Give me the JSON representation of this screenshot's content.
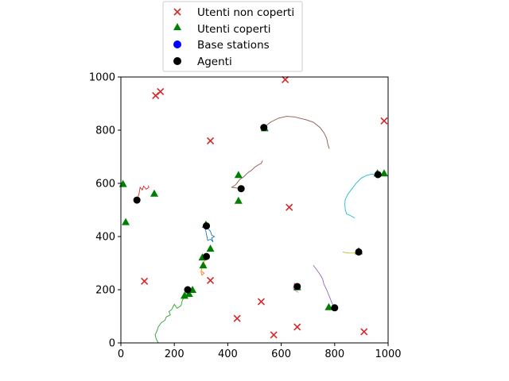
{
  "chart_data": {
    "type": "scatter",
    "title": "",
    "xlabel": "",
    "ylabel": "",
    "xlim": [
      0,
      1000
    ],
    "ylim": [
      0,
      1000
    ],
    "xticks": [
      0,
      200,
      400,
      600,
      800,
      1000
    ],
    "yticks": [
      0,
      200,
      400,
      600,
      800,
      1000
    ],
    "grid": false,
    "legend_position": "above plot",
    "legend": [
      {
        "label": "Utenti non coperti",
        "marker": "x",
        "color": "#d62728"
      },
      {
        "label": "Utenti coperti",
        "marker": "triangle",
        "color": "#008000"
      },
      {
        "label": "Base stations",
        "marker": "circle",
        "color": "#0000ff"
      },
      {
        "label": "Agenti",
        "marker": "circle",
        "color": "#000000"
      }
    ],
    "series": [
      {
        "name": "Utenti non coperti",
        "marker": "x",
        "color": "#d62728",
        "points": [
          [
            130,
            930
          ],
          [
            148,
            945
          ],
          [
            335,
            760
          ],
          [
            615,
            990
          ],
          [
            985,
            835
          ],
          [
            630,
            510
          ],
          [
            88,
            232
          ],
          [
            335,
            235
          ],
          [
            525,
            155
          ],
          [
            435,
            92
          ],
          [
            572,
            30
          ],
          [
            660,
            60
          ],
          [
            910,
            42
          ]
        ]
      },
      {
        "name": "Utenti coperti",
        "marker": "triangle",
        "color": "#008000",
        "points": [
          [
            8,
            598
          ],
          [
            18,
            455
          ],
          [
            125,
            562
          ],
          [
            440,
            632
          ],
          [
            440,
            535
          ],
          [
            538,
            808
          ],
          [
            318,
            445
          ],
          [
            335,
            355
          ],
          [
            305,
            322
          ],
          [
            308,
            292
          ],
          [
            268,
            200
          ],
          [
            238,
            178
          ],
          [
            255,
            185
          ],
          [
            660,
            210
          ],
          [
            778,
            135
          ],
          [
            890,
            345
          ],
          [
            960,
            638
          ],
          [
            985,
            638
          ]
        ]
      },
      {
        "name": "Agenti",
        "marker": "circle",
        "color": "#000000",
        "points": [
          [
            60,
            537
          ],
          [
            450,
            580
          ],
          [
            535,
            810
          ],
          [
            320,
            440
          ],
          [
            320,
            325
          ],
          [
            250,
            200
          ],
          [
            660,
            212
          ],
          [
            800,
            132
          ],
          [
            890,
            342
          ],
          [
            962,
            633
          ]
        ]
      }
    ],
    "trajectories": [
      {
        "color": "#d62728",
        "points": [
          [
            60,
            537
          ],
          [
            68,
            560
          ],
          [
            72,
            585
          ],
          [
            80,
            575
          ],
          [
            85,
            590
          ],
          [
            95,
            578
          ],
          [
            105,
            585
          ],
          [
            102,
            592
          ]
        ]
      },
      {
        "color": "#8c564b",
        "points": [
          [
            450,
            580
          ],
          [
            415,
            585
          ],
          [
            430,
            595
          ],
          [
            445,
            615
          ],
          [
            460,
            625
          ],
          [
            475,
            640
          ],
          [
            490,
            650
          ],
          [
            500,
            660
          ],
          [
            515,
            670
          ],
          [
            525,
            675
          ],
          [
            530,
            685
          ]
        ]
      },
      {
        "color": "#8c564b",
        "points": [
          [
            535,
            810
          ],
          [
            560,
            830
          ],
          [
            590,
            845
          ],
          [
            620,
            852
          ],
          [
            650,
            850
          ],
          [
            690,
            840
          ],
          [
            720,
            830
          ],
          [
            745,
            810
          ],
          [
            760,
            790
          ],
          [
            770,
            770
          ],
          [
            775,
            745
          ],
          [
            780,
            730
          ]
        ]
      },
      {
        "color": "#1f77b4",
        "points": [
          [
            320,
            440
          ],
          [
            325,
            430
          ],
          [
            335,
            420
          ],
          [
            340,
            405
          ],
          [
            350,
            400
          ],
          [
            340,
            395
          ],
          [
            345,
            380
          ],
          [
            335,
            390
          ],
          [
            325,
            385
          ],
          [
            318,
            420
          ],
          [
            315,
            450
          ]
        ]
      },
      {
        "color": "#ff7f0e",
        "points": [
          [
            320,
            325
          ],
          [
            310,
            300
          ],
          [
            318,
            290
          ],
          [
            305,
            285
          ],
          [
            300,
            270
          ],
          [
            312,
            262
          ],
          [
            303,
            255
          ],
          [
            300,
            268
          ]
        ]
      },
      {
        "color": "#2ca02c",
        "points": [
          [
            250,
            200
          ],
          [
            238,
            175
          ],
          [
            230,
            160
          ],
          [
            225,
            140
          ],
          [
            210,
            130
          ],
          [
            200,
            145
          ],
          [
            190,
            125
          ],
          [
            180,
            118
          ],
          [
            185,
            105
          ],
          [
            170,
            98
          ],
          [
            165,
            85
          ],
          [
            150,
            75
          ],
          [
            140,
            60
          ],
          [
            135,
            45
          ],
          [
            128,
            30
          ],
          [
            132,
            15
          ],
          [
            140,
            0
          ]
        ]
      },
      {
        "color": "#e377c2",
        "points": [
          [
            660,
            212
          ],
          [
            650,
            225
          ],
          [
            645,
            205
          ],
          [
            655,
            195
          ],
          [
            665,
            190
          ]
        ]
      },
      {
        "color": "#9467bd",
        "points": [
          [
            800,
            132
          ],
          [
            790,
            150
          ],
          [
            780,
            175
          ],
          [
            770,
            200
          ],
          [
            760,
            220
          ],
          [
            755,
            240
          ],
          [
            745,
            258
          ],
          [
            735,
            272
          ],
          [
            725,
            285
          ],
          [
            720,
            292
          ]
        ]
      },
      {
        "color": "#bcbd22",
        "points": [
          [
            890,
            342
          ],
          [
            870,
            338
          ],
          [
            850,
            338
          ],
          [
            830,
            342
          ]
        ]
      },
      {
        "color": "#17becf",
        "points": [
          [
            962,
            633
          ],
          [
            940,
            635
          ],
          [
            920,
            630
          ],
          [
            900,
            620
          ],
          [
            880,
            600
          ],
          [
            865,
            580
          ],
          [
            850,
            560
          ],
          [
            840,
            540
          ],
          [
            838,
            520
          ],
          [
            840,
            500
          ],
          [
            845,
            485
          ],
          [
            860,
            478
          ],
          [
            875,
            470
          ]
        ]
      }
    ]
  }
}
